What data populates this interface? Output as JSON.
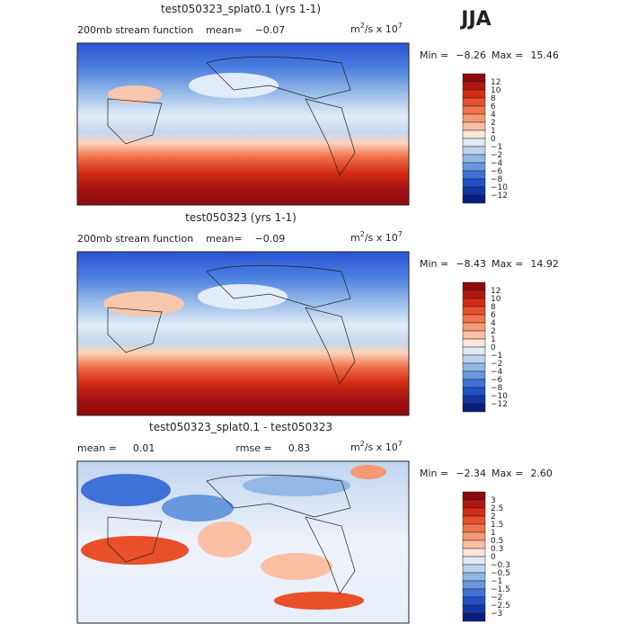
{
  "season": "JJA",
  "panels": [
    {
      "title": "test050323_splat0.1 (yrs 1-1)",
      "left": [
        "200mb stream function",
        "mean=",
        "−0.07"
      ],
      "units": [
        "m",
        "2",
        "/s x 10",
        "7"
      ],
      "stats": [
        "Min =",
        "−8.26",
        "Max =",
        "15.46"
      ],
      "levels": [
        "12",
        "10",
        "8",
        "6",
        "4",
        "2",
        "1",
        "0",
        "−1",
        "−2",
        "−4",
        "−6",
        "−8",
        "−10",
        "−12"
      ]
    },
    {
      "title": "test050323 (yrs 1-1)",
      "left": [
        "200mb stream function",
        "mean=",
        "−0.09"
      ],
      "units": [
        "m",
        "2",
        "/s x 10",
        "7"
      ],
      "stats": [
        "Min =",
        "−8.43",
        "Max =",
        "14.92"
      ],
      "levels": [
        "12",
        "10",
        "8",
        "6",
        "4",
        "2",
        "1",
        "0",
        "−1",
        "−2",
        "−4",
        "−6",
        "−8",
        "−10",
        "−12"
      ]
    },
    {
      "title": "test050323_splat0.1 - test050323",
      "left": [
        "mean =",
        "0.01",
        "rmse =",
        "0.83"
      ],
      "units": [
        "m",
        "2",
        "/s x 10",
        "7"
      ],
      "stats": [
        "Min =",
        "−2.34",
        "Max =",
        "2.60"
      ],
      "levels": [
        "3",
        "2.5",
        "2",
        "1.5",
        "1",
        "0.5",
        "0.3",
        "0",
        "−0.3",
        "−0.5",
        "−1",
        "−1.5",
        "−2",
        "−2.5",
        "−3"
      ]
    }
  ],
  "colors": [
    "#8c0a0a",
    "#b2180f",
    "#d42d16",
    "#e8502a",
    "#f2734a",
    "#f79a74",
    "#fbc0a3",
    "#fde6d8",
    "#deeaf7",
    "#bcd4ef",
    "#93b8e7",
    "#6898de",
    "#3f72d6",
    "#2150c8",
    "#1335a6",
    "#0a1d7f"
  ]
}
